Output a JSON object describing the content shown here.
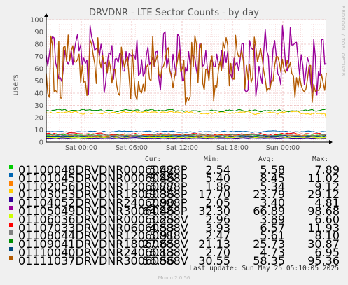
{
  "title": "DRVDNR - LTE Sector Counts - by day",
  "ylabel": "users",
  "side_text": "RRDTOOL / TOBI OETIKER",
  "headers": {
    "cur": "Cur:",
    "min": "Min:",
    "avg": "Avg:",
    "max": "Max:"
  },
  "last_update": "Last update: Sun May 25 05:10:05 2025",
  "munin": "Munin 2.0.56",
  "chart_data": {
    "type": "line",
    "title": "DRVDNR - LTE Sector Counts - by day",
    "ylabel": "users",
    "ylim": [
      0,
      100
    ],
    "yticks": [
      0,
      10,
      20,
      30,
      40,
      50,
      60,
      70,
      80,
      90,
      100
    ],
    "xticks": [
      "Sat 00:00",
      "Sat 06:00",
      "Sat 12:00",
      "Sat 18:00",
      "Sun 00:00"
    ],
    "grid": true,
    "series": [
      {
        "name": "01100048DRVDNR00060888P",
        "color": "#00cc00",
        "cur": "5.42",
        "min": "2.54",
        "avg": "5.58",
        "max": "7.89"
      },
      {
        "name": "01101045DRVDNR00060888P",
        "color": "#0066b3",
        "cur": "8.46",
        "min": "5.40",
        "avg": "8.45",
        "max": "11.02"
      },
      {
        "name": "01102056DRVDNR12060888P",
        "color": "#ff8000",
        "cur": "6.77",
        "min": "1.86",
        "avg": "5.34",
        "max": "9.12"
      },
      {
        "name": "01103053DRVDNR18060888P",
        "color": "#ffcc00",
        "cur": "19.36",
        "min": "17.70",
        "avg": "23.79",
        "max": "29.12"
      },
      {
        "name": "01104052DRVDNR24060888P",
        "color": "#330099",
        "cur": "2.90",
        "min": "2.05",
        "avg": "3.40",
        "max": "4.81"
      },
      {
        "name": "01105049DRVDNR30060888P",
        "color": "#990099",
        "cur": "64.46",
        "min": "32.30",
        "avg": "66.89",
        "max": "98.68"
      },
      {
        "name": "01106036DRVDNR00060888V",
        "color": "#ccff00",
        "cur": "3.25",
        "min": "2.96",
        "avg": "3.89",
        "max": "6.60"
      },
      {
        "name": "01107033DRVDNR06060888V",
        "color": "#ff0000",
        "cur": "4.53",
        "min": "3.93",
        "avg": "6.57",
        "max": "11.93"
      },
      {
        "name": "01108044DRVDNR12060888V",
        "color": "#808080",
        "cur": "5.91",
        "min": "2.47",
        "avg": "5.61",
        "max": "8.10"
      },
      {
        "name": "01109041DRVDNR18060888V",
        "color": "#008f00",
        "cur": "27.65",
        "min": "21.13",
        "avg": "25.73",
        "max": "30.87"
      },
      {
        "name": "01110040DRVDNR24060888V",
        "color": "#00487d",
        "cur": "6.13",
        "min": "2.70",
        "avg": "4.73",
        "max": "6.95"
      },
      {
        "name": "01111037DRVDNR30060888V",
        "color": "#b35a00",
        "cur": "56.56",
        "min": "30.55",
        "avg": "58.35",
        "max": "95.36"
      }
    ]
  }
}
